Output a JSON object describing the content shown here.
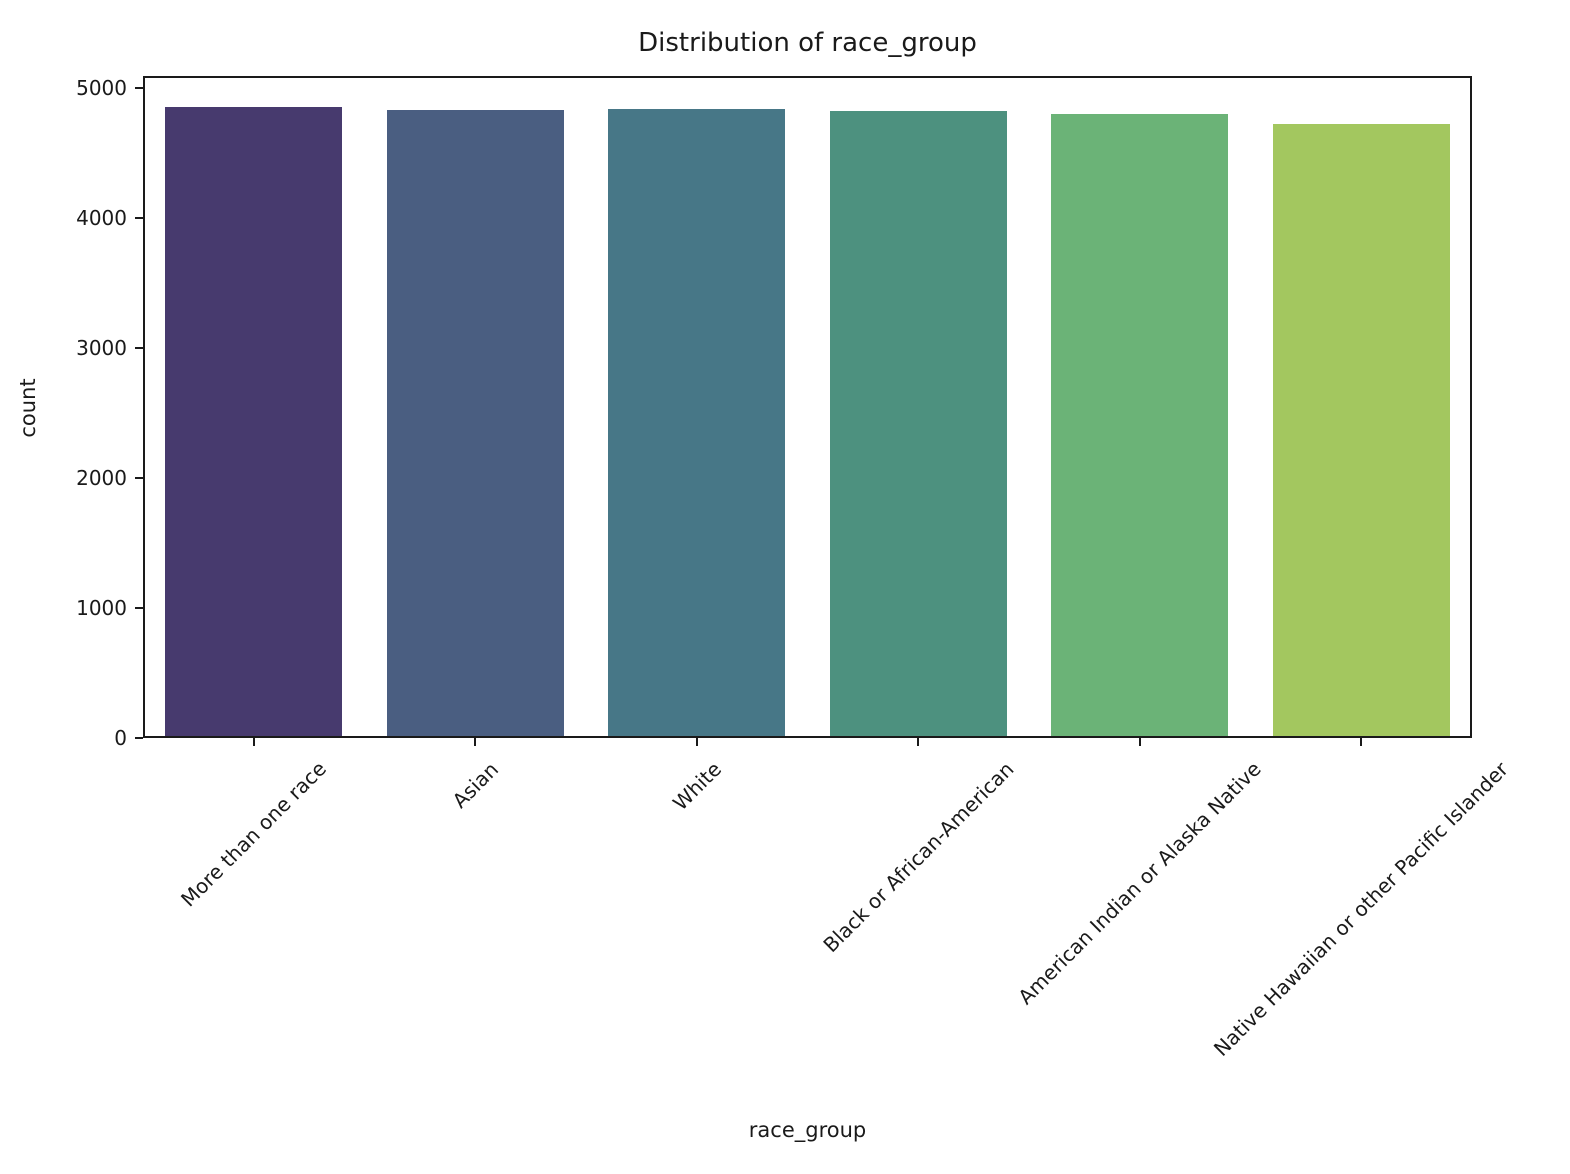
{
  "chart_data": {
    "type": "bar",
    "title": "Distribution of race_group",
    "xlabel": "race_group",
    "ylabel": "count",
    "categories": [
      "More than one race",
      "Asian",
      "White",
      "Black or African-American",
      "American Indian or Alaska Native",
      "Native Hawaiian or other Pacific Islander"
    ],
    "values": [
      4835,
      4818,
      4822,
      4806,
      4786,
      4708
    ],
    "bar_colors": [
      "#473a6e",
      "#4a5e81",
      "#477787",
      "#4d917f",
      "#6bb377",
      "#a3c75f"
    ],
    "yticks": [
      0,
      1000,
      2000,
      3000,
      4000,
      5000
    ],
    "ylim": [
      0,
      5092
    ],
    "xtick_rotation_deg": 45,
    "grid": false,
    "legend": null,
    "axis_color": "#1a1a1a",
    "background_color": "#ffffff"
  }
}
